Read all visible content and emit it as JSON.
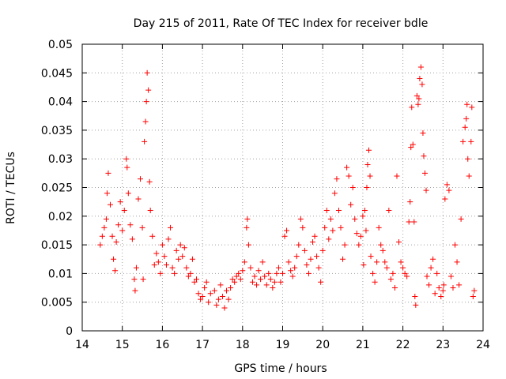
{
  "chart_data": {
    "type": "scatter",
    "title": "Day 215 of 2011, Rate Of TEC Index for receiver bdle",
    "xlabel": "GPS time / hours",
    "ylabel": "ROTI / TECUs",
    "xlim": [
      14,
      24
    ],
    "ylim": [
      0,
      0.05
    ],
    "x_ticks": [
      "14",
      "15",
      "16",
      "17",
      "18",
      "19",
      "20",
      "21",
      "22",
      "23",
      "24"
    ],
    "y_ticks": [
      "0",
      "0.005",
      "0.01",
      "0.015",
      "0.02",
      "0.025",
      "0.03",
      "0.035",
      "0.04",
      "0.045",
      "0.05"
    ],
    "grid": true,
    "marker": "+",
    "color": "#ff0000",
    "series": [
      {
        "name": "ROTI",
        "points": [
          [
            14.45,
            0.015
          ],
          [
            14.5,
            0.0165
          ],
          [
            14.55,
            0.018
          ],
          [
            14.6,
            0.0195
          ],
          [
            14.62,
            0.024
          ],
          [
            14.65,
            0.0275
          ],
          [
            14.7,
            0.022
          ],
          [
            14.75,
            0.0165
          ],
          [
            14.78,
            0.0125
          ],
          [
            14.82,
            0.0105
          ],
          [
            14.85,
            0.0155
          ],
          [
            14.9,
            0.0185
          ],
          [
            14.95,
            0.0225
          ],
          [
            15.0,
            0.0175
          ],
          [
            15.05,
            0.021
          ],
          [
            15.1,
            0.03
          ],
          [
            15.12,
            0.0285
          ],
          [
            15.15,
            0.024
          ],
          [
            15.2,
            0.0185
          ],
          [
            15.25,
            0.016
          ],
          [
            15.3,
            0.009
          ],
          [
            15.32,
            0.007
          ],
          [
            15.35,
            0.011
          ],
          [
            15.4,
            0.023
          ],
          [
            15.45,
            0.0265
          ],
          [
            15.5,
            0.018
          ],
          [
            15.52,
            0.009
          ],
          [
            15.55,
            0.033
          ],
          [
            15.58,
            0.0365
          ],
          [
            15.6,
            0.04
          ],
          [
            15.62,
            0.045
          ],
          [
            15.65,
            0.042
          ],
          [
            15.68,
            0.026
          ],
          [
            15.7,
            0.021
          ],
          [
            15.75,
            0.0165
          ],
          [
            15.8,
            0.0115
          ],
          [
            15.85,
            0.0135
          ],
          [
            15.9,
            0.012
          ],
          [
            15.95,
            0.01
          ],
          [
            16.0,
            0.015
          ],
          [
            16.05,
            0.013
          ],
          [
            16.1,
            0.0115
          ],
          [
            16.15,
            0.016
          ],
          [
            16.2,
            0.018
          ],
          [
            16.25,
            0.011
          ],
          [
            16.3,
            0.01
          ],
          [
            16.35,
            0.014
          ],
          [
            16.4,
            0.0125
          ],
          [
            16.45,
            0.015
          ],
          [
            16.5,
            0.013
          ],
          [
            16.55,
            0.0145
          ],
          [
            16.6,
            0.011
          ],
          [
            16.65,
            0.0095
          ],
          [
            16.7,
            0.01
          ],
          [
            16.75,
            0.0125
          ],
          [
            16.8,
            0.0085
          ],
          [
            16.85,
            0.009
          ],
          [
            16.9,
            0.0065
          ],
          [
            16.95,
            0.0055
          ],
          [
            17.0,
            0.006
          ],
          [
            17.05,
            0.0075
          ],
          [
            17.1,
            0.0085
          ],
          [
            17.15,
            0.005
          ],
          [
            17.2,
            0.0065
          ],
          [
            17.3,
            0.007
          ],
          [
            17.35,
            0.0045
          ],
          [
            17.4,
            0.0055
          ],
          [
            17.45,
            0.008
          ],
          [
            17.5,
            0.006
          ],
          [
            17.55,
            0.004
          ],
          [
            17.6,
            0.007
          ],
          [
            17.65,
            0.0055
          ],
          [
            17.7,
            0.0075
          ],
          [
            17.75,
            0.009
          ],
          [
            17.8,
            0.0085
          ],
          [
            17.85,
            0.0095
          ],
          [
            17.9,
            0.01
          ],
          [
            17.95,
            0.009
          ],
          [
            18.0,
            0.0105
          ],
          [
            18.05,
            0.012
          ],
          [
            18.1,
            0.018
          ],
          [
            18.12,
            0.0195
          ],
          [
            18.15,
            0.015
          ],
          [
            18.2,
            0.011
          ],
          [
            18.25,
            0.0085
          ],
          [
            18.3,
            0.0095
          ],
          [
            18.35,
            0.008
          ],
          [
            18.4,
            0.0105
          ],
          [
            18.45,
            0.009
          ],
          [
            18.5,
            0.012
          ],
          [
            18.55,
            0.0095
          ],
          [
            18.6,
            0.008
          ],
          [
            18.65,
            0.01
          ],
          [
            18.7,
            0.009
          ],
          [
            18.75,
            0.0075
          ],
          [
            18.8,
            0.0085
          ],
          [
            18.85,
            0.01
          ],
          [
            18.9,
            0.011
          ],
          [
            18.95,
            0.0085
          ],
          [
            19.0,
            0.01
          ],
          [
            19.05,
            0.0165
          ],
          [
            19.1,
            0.0175
          ],
          [
            19.15,
            0.012
          ],
          [
            19.2,
            0.0105
          ],
          [
            19.25,
            0.0095
          ],
          [
            19.3,
            0.011
          ],
          [
            19.35,
            0.013
          ],
          [
            19.4,
            0.015
          ],
          [
            19.45,
            0.0195
          ],
          [
            19.5,
            0.018
          ],
          [
            19.55,
            0.014
          ],
          [
            19.6,
            0.0115
          ],
          [
            19.65,
            0.01
          ],
          [
            19.7,
            0.0125
          ],
          [
            19.75,
            0.0155
          ],
          [
            19.8,
            0.0165
          ],
          [
            19.85,
            0.013
          ],
          [
            19.9,
            0.011
          ],
          [
            19.95,
            0.0085
          ],
          [
            20.0,
            0.014
          ],
          [
            20.05,
            0.018
          ],
          [
            20.1,
            0.021
          ],
          [
            20.15,
            0.016
          ],
          [
            20.2,
            0.0195
          ],
          [
            20.25,
            0.0175
          ],
          [
            20.3,
            0.024
          ],
          [
            20.35,
            0.0265
          ],
          [
            20.4,
            0.021
          ],
          [
            20.45,
            0.018
          ],
          [
            20.5,
            0.0125
          ],
          [
            20.55,
            0.015
          ],
          [
            20.6,
            0.0285
          ],
          [
            20.65,
            0.027
          ],
          [
            20.7,
            0.022
          ],
          [
            20.75,
            0.025
          ],
          [
            20.8,
            0.0195
          ],
          [
            20.85,
            0.017
          ],
          [
            20.9,
            0.015
          ],
          [
            20.95,
            0.0165
          ],
          [
            21.0,
            0.02
          ],
          [
            21.02,
            0.0115
          ],
          [
            21.05,
            0.021
          ],
          [
            21.08,
            0.0175
          ],
          [
            21.1,
            0.025
          ],
          [
            21.12,
            0.029
          ],
          [
            21.15,
            0.0315
          ],
          [
            21.18,
            0.027
          ],
          [
            21.2,
            0.013
          ],
          [
            21.25,
            0.01
          ],
          [
            21.3,
            0.0085
          ],
          [
            21.35,
            0.012
          ],
          [
            21.4,
            0.018
          ],
          [
            21.45,
            0.015
          ],
          [
            21.5,
            0.014
          ],
          [
            21.55,
            0.012
          ],
          [
            21.6,
            0.011
          ],
          [
            21.65,
            0.021
          ],
          [
            21.7,
            0.009
          ],
          [
            21.75,
            0.01
          ],
          [
            21.8,
            0.0075
          ],
          [
            21.85,
            0.027
          ],
          [
            21.9,
            0.0155
          ],
          [
            21.95,
            0.012
          ],
          [
            22.0,
            0.011
          ],
          [
            22.05,
            0.01
          ],
          [
            22.1,
            0.0095
          ],
          [
            22.15,
            0.019
          ],
          [
            22.18,
            0.0225
          ],
          [
            22.2,
            0.032
          ],
          [
            22.22,
            0.039
          ],
          [
            22.25,
            0.0325
          ],
          [
            22.28,
            0.019
          ],
          [
            22.3,
            0.006
          ],
          [
            22.32,
            0.0045
          ],
          [
            22.35,
            0.041
          ],
          [
            22.38,
            0.0395
          ],
          [
            22.4,
            0.0405
          ],
          [
            22.42,
            0.044
          ],
          [
            22.45,
            0.046
          ],
          [
            22.48,
            0.043
          ],
          [
            22.5,
            0.0345
          ],
          [
            22.52,
            0.0305
          ],
          [
            22.55,
            0.0275
          ],
          [
            22.58,
            0.0245
          ],
          [
            22.6,
            0.0095
          ],
          [
            22.65,
            0.008
          ],
          [
            22.7,
            0.011
          ],
          [
            22.75,
            0.0125
          ],
          [
            22.8,
            0.0065
          ],
          [
            22.85,
            0.01
          ],
          [
            22.9,
            0.0075
          ],
          [
            22.95,
            0.006
          ],
          [
            23.0,
            0.007
          ],
          [
            23.02,
            0.008
          ],
          [
            23.05,
            0.023
          ],
          [
            23.1,
            0.0255
          ],
          [
            23.15,
            0.0245
          ],
          [
            23.2,
            0.0095
          ],
          [
            23.25,
            0.0075
          ],
          [
            23.3,
            0.015
          ],
          [
            23.35,
            0.012
          ],
          [
            23.4,
            0.008
          ],
          [
            23.45,
            0.0195
          ],
          [
            23.5,
            0.033
          ],
          [
            23.55,
            0.0355
          ],
          [
            23.58,
            0.037
          ],
          [
            23.6,
            0.0395
          ],
          [
            23.62,
            0.03
          ],
          [
            23.65,
            0.027
          ],
          [
            23.7,
            0.033
          ],
          [
            23.72,
            0.039
          ],
          [
            23.75,
            0.006
          ],
          [
            23.78,
            0.007
          ]
        ]
      }
    ]
  }
}
